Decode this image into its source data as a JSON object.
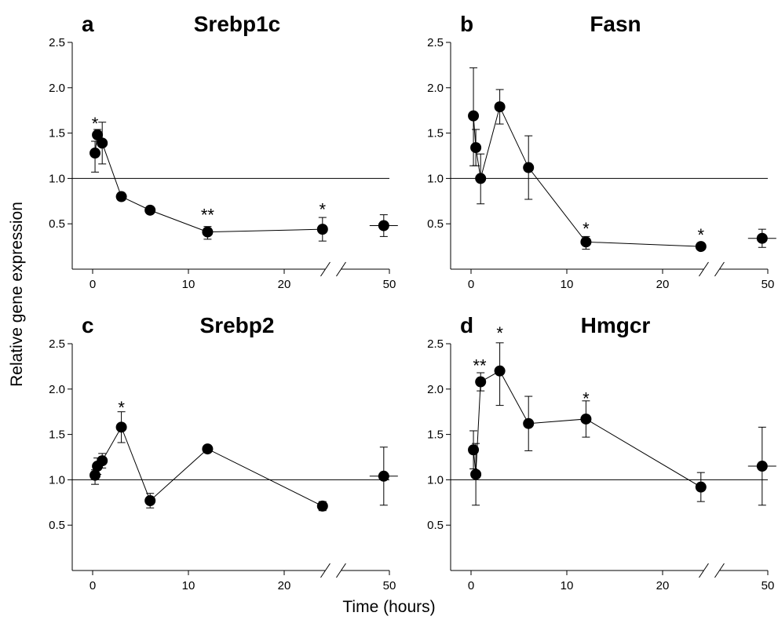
{
  "figure": {
    "ylabel": "Relative gene expression",
    "xlabel": "Time (hours)"
  },
  "chart_data": [
    {
      "type": "scatter",
      "panel_letter": "a",
      "title": "Srebp1c",
      "xlim": [
        -2,
        50
      ],
      "ylim": [
        0,
        2.5
      ],
      "x_ticks": [
        0,
        10,
        20,
        50
      ],
      "y_ticks": [
        0.5,
        1.0,
        1.5,
        2.0,
        2.5
      ],
      "x_axis_break": true,
      "reference_line_y": 1.0,
      "series": [
        {
          "x": [
            0.25,
            0.5,
            1,
            3,
            6,
            12,
            24
          ],
          "y": [
            1.28,
            1.48,
            1.39,
            0.8,
            0.65,
            0.41,
            0.44
          ],
          "err_upper": [
            0.13,
            0.06,
            0.23,
            0.04,
            0.03,
            0.06,
            0.13
          ],
          "err_lower": [
            0.21,
            0.02,
            0.23,
            0.04,
            0.03,
            0.08,
            0.13
          ],
          "connected": true
        },
        {
          "x": [
            47
          ],
          "y": [
            0.48
          ],
          "err_upper": [
            0.12
          ],
          "err_lower": [
            0.12
          ],
          "connected": false
        }
      ],
      "significance": [
        {
          "x": 0.25,
          "y": 1.61,
          "label": "*"
        },
        {
          "x": 12,
          "y": 0.6,
          "label": "**"
        },
        {
          "x": 24,
          "y": 0.66,
          "label": "*"
        }
      ]
    },
    {
      "type": "scatter",
      "panel_letter": "b",
      "title": "Fasn",
      "xlim": [
        -2,
        50
      ],
      "ylim": [
        0,
        2.5
      ],
      "x_ticks": [
        0,
        10,
        20,
        50
      ],
      "y_ticks": [
        0.5,
        1.0,
        1.5,
        2.0,
        2.5
      ],
      "x_axis_break": true,
      "reference_line_y": 1.0,
      "series": [
        {
          "x": [
            0.25,
            0.5,
            1,
            3,
            6,
            12,
            24
          ],
          "y": [
            1.69,
            1.34,
            1.0,
            1.79,
            1.12,
            0.3,
            0.25
          ],
          "err_upper": [
            0.53,
            0.2,
            0.27,
            0.19,
            0.35,
            0.06,
            0.03
          ],
          "err_lower": [
            0.55,
            0.2,
            0.28,
            0.19,
            0.35,
            0.08,
            0.03
          ],
          "connected": true
        },
        {
          "x": [
            47
          ],
          "y": [
            0.34
          ],
          "err_upper": [
            0.1
          ],
          "err_lower": [
            0.1
          ],
          "connected": false
        }
      ],
      "significance": [
        {
          "x": 12,
          "y": 0.45,
          "label": "*"
        },
        {
          "x": 24,
          "y": 0.38,
          "label": "*"
        }
      ]
    },
    {
      "type": "scatter",
      "panel_letter": "c",
      "title": "Srebp2",
      "xlim": [
        -2,
        50
      ],
      "ylim": [
        0,
        2.5
      ],
      "x_ticks": [
        0,
        10,
        20,
        50
      ],
      "y_ticks": [
        0.5,
        1.0,
        1.5,
        2.0,
        2.5
      ],
      "x_axis_break": true,
      "reference_line_y": 1.0,
      "series": [
        {
          "x": [
            0.25,
            0.5,
            1,
            3,
            6,
            12,
            24
          ],
          "y": [
            1.05,
            1.15,
            1.21,
            1.58,
            0.77,
            1.34,
            0.71
          ],
          "err_upper": [
            0.06,
            0.09,
            0.08,
            0.17,
            0.08,
            0.02,
            0.05
          ],
          "err_lower": [
            0.1,
            0.09,
            0.08,
            0.17,
            0.08,
            0.02,
            0.05
          ],
          "connected": true
        },
        {
          "x": [
            47
          ],
          "y": [
            1.04
          ],
          "err_upper": [
            0.32
          ],
          "err_lower": [
            0.32
          ],
          "connected": false
        }
      ],
      "significance": [
        {
          "x": 3,
          "y": 1.8,
          "label": "*"
        }
      ]
    },
    {
      "type": "scatter",
      "panel_letter": "d",
      "title": "Hmgcr",
      "xlim": [
        -2,
        50
      ],
      "ylim": [
        0,
        2.5
      ],
      "x_ticks": [
        0,
        10,
        20,
        50
      ],
      "y_ticks": [
        0.5,
        1.0,
        1.5,
        2.0,
        2.5
      ],
      "x_axis_break": true,
      "reference_line_y": 1.0,
      "series": [
        {
          "x": [
            0.25,
            0.5,
            1,
            3,
            6,
            12,
            24
          ],
          "y": [
            1.33,
            1.06,
            2.08,
            2.2,
            1.62,
            1.67,
            0.92
          ],
          "err_upper": [
            0.21,
            0.34,
            0.1,
            0.31,
            0.3,
            0.2,
            0.16
          ],
          "err_lower": [
            0.21,
            0.34,
            0.1,
            0.38,
            0.3,
            0.2,
            0.16
          ],
          "connected": true
        },
        {
          "x": [
            47
          ],
          "y": [
            1.15
          ],
          "err_upper": [
            0.43
          ],
          "err_lower": [
            0.43
          ],
          "connected": false
        }
      ],
      "significance": [
        {
          "x": 0.9,
          "y": 2.26,
          "label": "**"
        },
        {
          "x": 3,
          "y": 2.62,
          "label": "*"
        },
        {
          "x": 12,
          "y": 1.9,
          "label": "*"
        }
      ]
    }
  ]
}
